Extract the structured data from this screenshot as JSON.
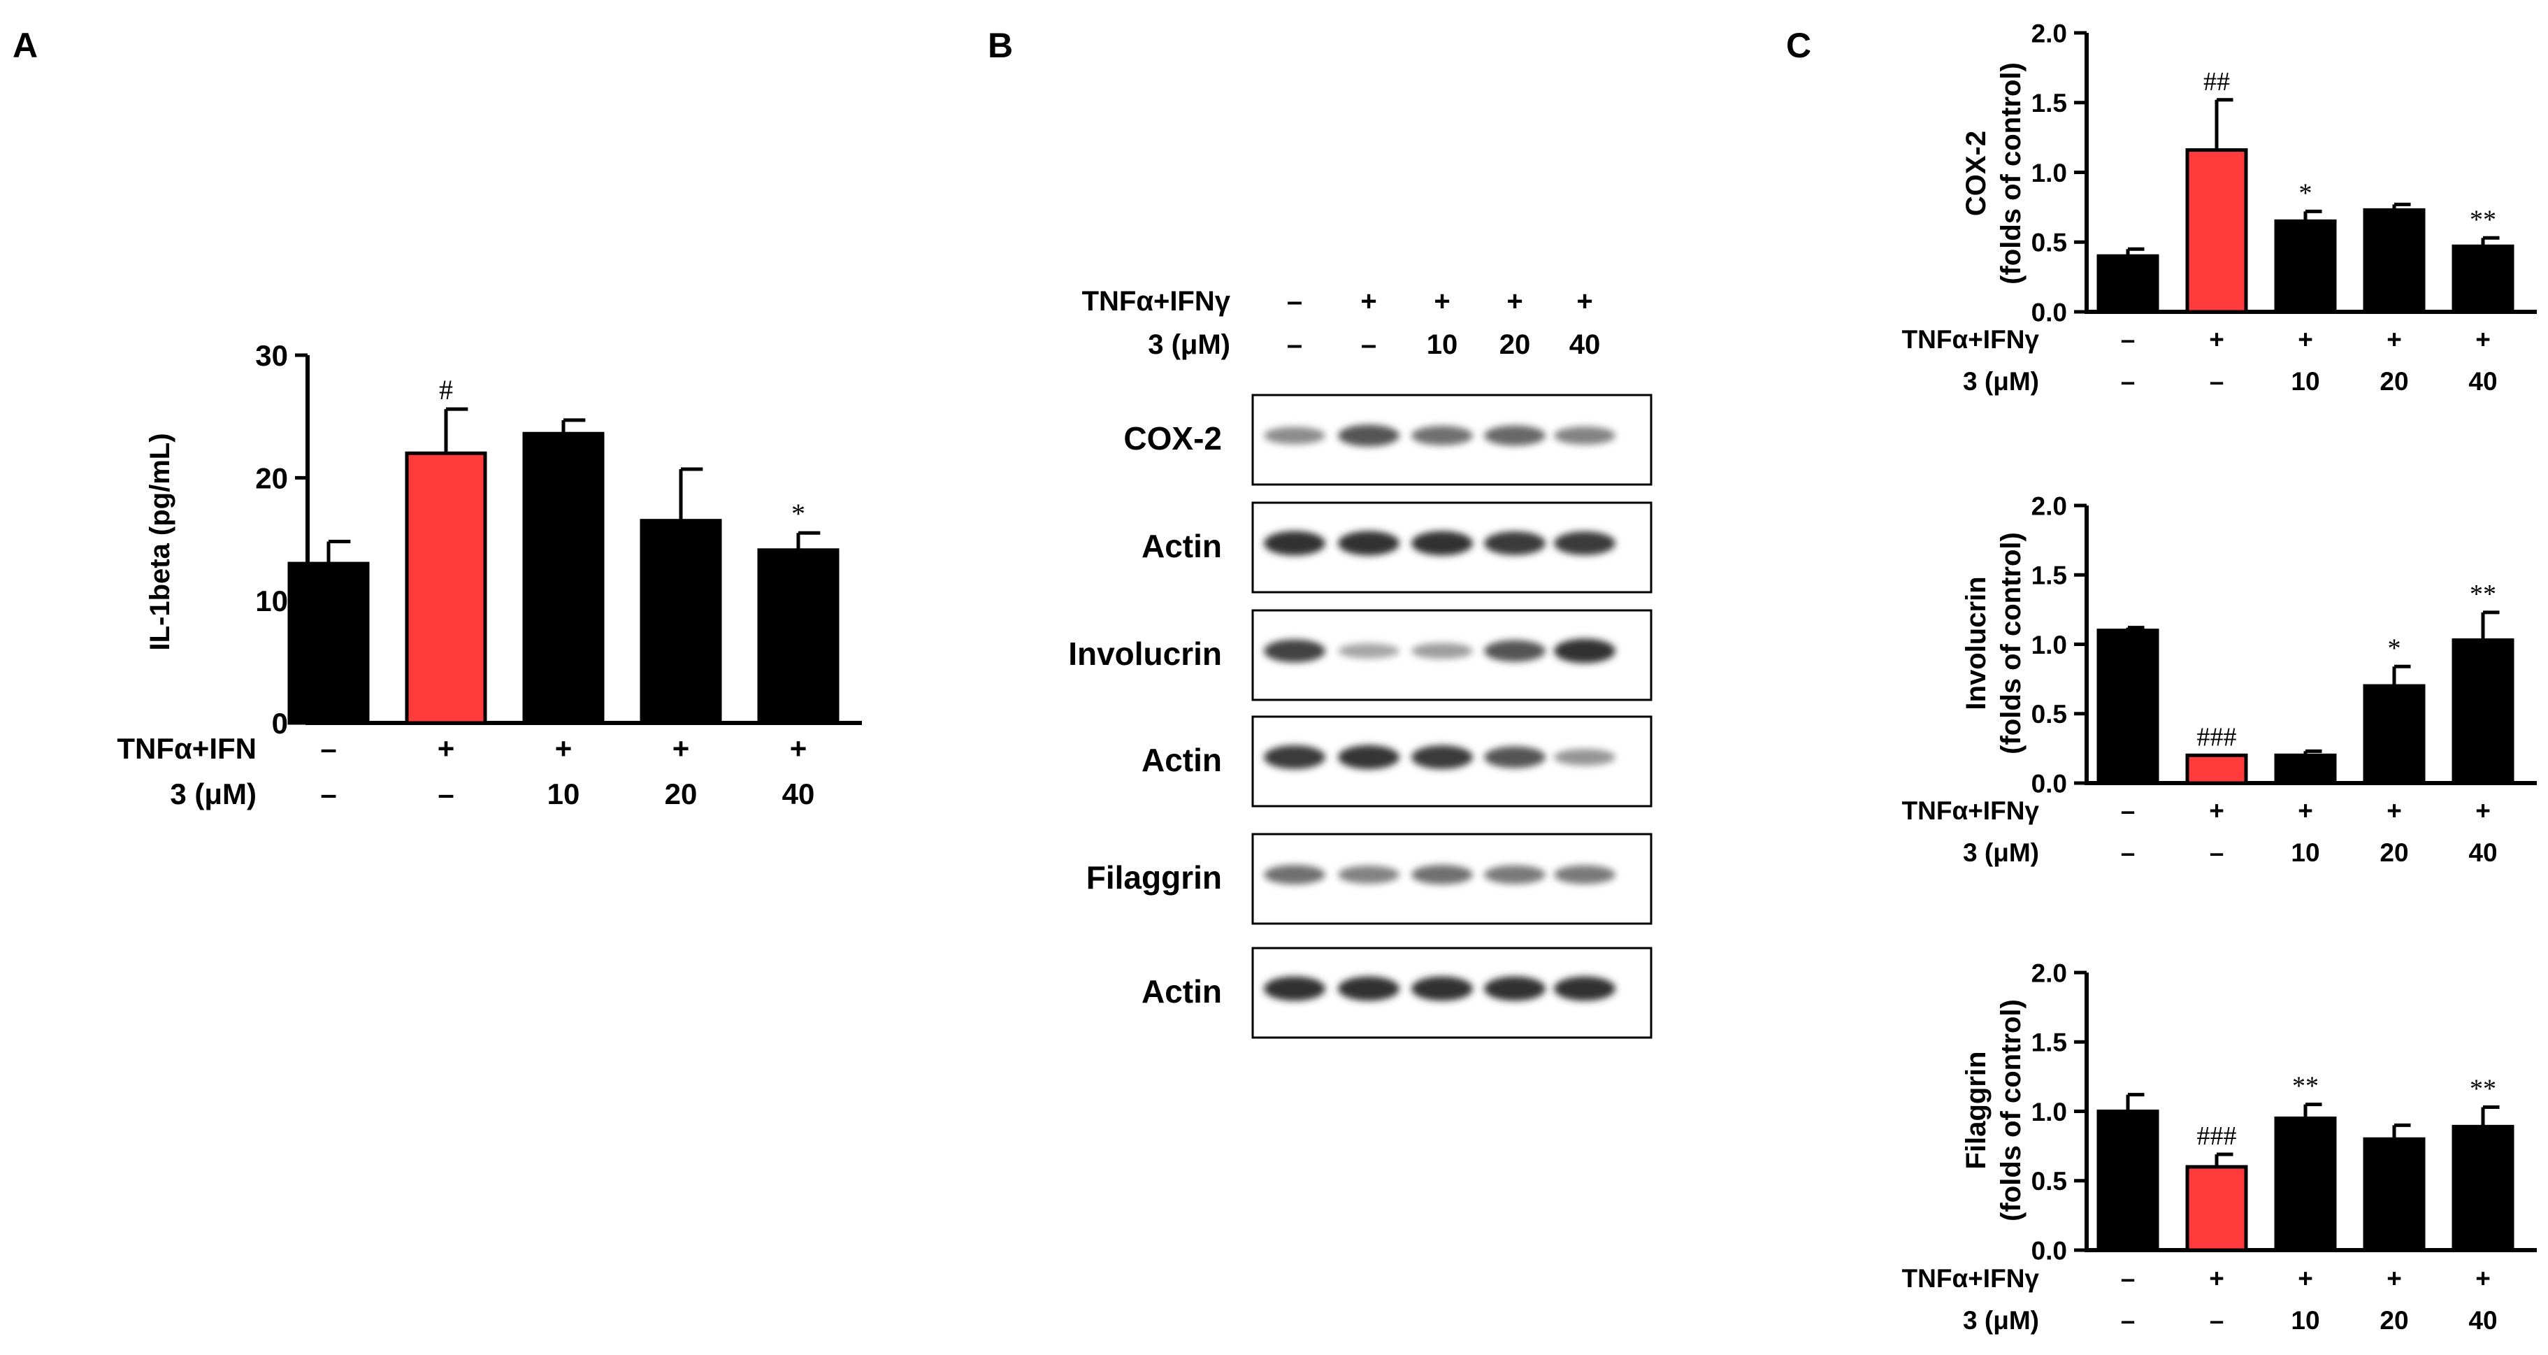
{
  "panels": {
    "a": "A",
    "b": "B",
    "c": "C"
  },
  "colors": {
    "bar": "#000000",
    "highlight": "#ff3b3b",
    "blot_bg": "#ffffff"
  },
  "chart_data": [
    {
      "id": "A",
      "type": "bar",
      "ylabel": "IL-1beta (pg/mL)",
      "ylim": [
        0,
        30
      ],
      "yticks": [
        "0",
        "10",
        "20",
        "30"
      ],
      "values": [
        13.0,
        22.0,
        23.6,
        16.5,
        14.1
      ],
      "errors": [
        1.8,
        3.6,
        1.1,
        4.2,
        1.4
      ],
      "highlight_index": 1,
      "annotations": [
        "",
        "#",
        "",
        "",
        "*"
      ],
      "rows": [
        {
          "label": "TNFα+IFN",
          "values": [
            "–",
            "+",
            "+",
            "+",
            "+"
          ]
        },
        {
          "label": "3 (μM)",
          "values": [
            "–",
            "–",
            "10",
            "20",
            "40"
          ]
        }
      ]
    },
    {
      "id": "C1",
      "type": "bar",
      "ylabel": [
        "COX-2",
        "(folds of control)"
      ],
      "ylim": [
        0,
        2.0
      ],
      "yticks": [
        "0.0",
        "0.5",
        "1.0",
        "1.5",
        "2.0"
      ],
      "values": [
        0.4,
        1.16,
        0.65,
        0.73,
        0.47
      ],
      "errors": [
        0.05,
        0.36,
        0.07,
        0.04,
        0.06
      ],
      "highlight_index": 1,
      "annotations": [
        "",
        "##",
        "*",
        "",
        "**"
      ],
      "rows": [
        {
          "label": "TNFα+IFNγ",
          "values": [
            "–",
            "+",
            "+",
            "+",
            "+"
          ]
        },
        {
          "label": "3 (μM)",
          "values": [
            "–",
            "–",
            "10",
            "20",
            "40"
          ]
        }
      ]
    },
    {
      "id": "C2",
      "type": "bar",
      "ylabel": [
        "Involucrin",
        "(folds of control)"
      ],
      "ylim": [
        0,
        2.0
      ],
      "yticks": [
        "0.0",
        "0.5",
        "1.0",
        "1.5",
        "2.0"
      ],
      "values": [
        1.1,
        0.2,
        0.2,
        0.7,
        1.03
      ],
      "errors": [
        0.02,
        0.0,
        0.03,
        0.14,
        0.2
      ],
      "highlight_index": 1,
      "annotations": [
        "",
        "###",
        "",
        "*",
        "**"
      ],
      "rows": [
        {
          "label": "TNFα+IFNγ",
          "values": [
            "–",
            "+",
            "+",
            "+",
            "+"
          ]
        },
        {
          "label": "3 (μM)",
          "values": [
            "–",
            "–",
            "10",
            "20",
            "40"
          ]
        }
      ]
    },
    {
      "id": "C3",
      "type": "bar",
      "ylabel": [
        "Filaggrin",
        "(folds of control)"
      ],
      "ylim": [
        0,
        2.0
      ],
      "yticks": [
        "0.0",
        "0.5",
        "1.0",
        "1.5",
        "2.0"
      ],
      "values": [
        1.0,
        0.6,
        0.95,
        0.8,
        0.89
      ],
      "errors": [
        0.12,
        0.09,
        0.1,
        0.1,
        0.14
      ],
      "highlight_index": 1,
      "annotations": [
        "",
        "###",
        "**",
        "",
        "**"
      ],
      "rows": [
        {
          "label": "TNFα+IFNγ",
          "values": [
            "–",
            "+",
            "+",
            "+",
            "+"
          ]
        },
        {
          "label": "3 (μM)",
          "values": [
            "–",
            "–",
            "10",
            "20",
            "40"
          ]
        }
      ]
    }
  ],
  "blot": {
    "rows": [
      {
        "label": "TNFα+IFNγ",
        "values": [
          "–",
          "+",
          "+",
          "+",
          "+"
        ]
      },
      {
        "label": "3 (μM)",
        "values": [
          "–",
          "–",
          "10",
          "20",
          "40"
        ]
      }
    ],
    "bands": [
      {
        "label": "COX-2",
        "intensity": [
          0.45,
          0.75,
          0.6,
          0.65,
          0.5
        ]
      },
      {
        "label": "Actin",
        "intensity": [
          0.95,
          0.95,
          0.95,
          0.9,
          0.9
        ]
      },
      {
        "label": "Involucrin",
        "intensity": [
          0.85,
          0.3,
          0.35,
          0.75,
          0.95
        ]
      },
      {
        "label": "Actin",
        "intensity": [
          0.9,
          0.92,
          0.9,
          0.75,
          0.4
        ]
      },
      {
        "label": "Filaggrin",
        "intensity": [
          0.6,
          0.5,
          0.6,
          0.55,
          0.55
        ]
      },
      {
        "label": "Actin",
        "intensity": [
          0.95,
          0.95,
          0.95,
          0.95,
          0.95
        ]
      }
    ]
  }
}
